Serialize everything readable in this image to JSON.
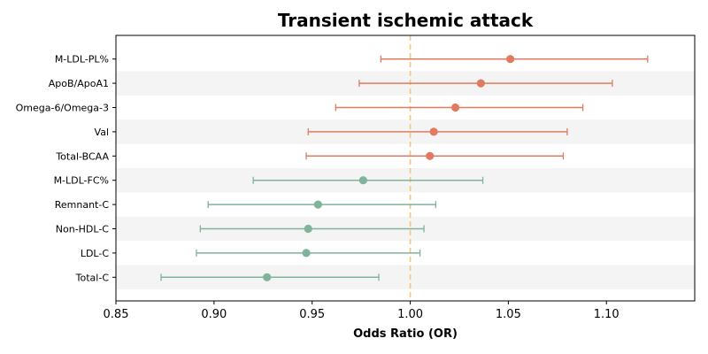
{
  "chart_data": {
    "type": "forest",
    "title": "Transient ischemic attack",
    "xlabel": "Odds Ratio (OR)",
    "ylabel": "",
    "xlim": [
      0.85,
      1.145
    ],
    "x_ticks": [
      0.85,
      0.9,
      0.95,
      1.0,
      1.05,
      1.1
    ],
    "x_tick_labels": [
      "0.85",
      "0.90",
      "0.95",
      "1.00",
      "1.05",
      "1.10"
    ],
    "reference_line": 1.0,
    "grid": false,
    "alternating_row_shading": true,
    "colors": {
      "positive": "#e07b5f",
      "negative": "#7fb39a",
      "reference": "#f5c57f",
      "shade": "#f4f4f4"
    },
    "rows": [
      {
        "label": "M-LDL-PL%",
        "or": 1.051,
        "lower": 0.985,
        "upper": 1.121,
        "group": "positive"
      },
      {
        "label": "ApoB/ApoA1",
        "or": 1.036,
        "lower": 0.974,
        "upper": 1.103,
        "group": "positive"
      },
      {
        "label": "Omega-6/Omega-3",
        "or": 1.023,
        "lower": 0.962,
        "upper": 1.088,
        "group": "positive"
      },
      {
        "label": "Val",
        "or": 1.012,
        "lower": 0.948,
        "upper": 1.08,
        "group": "positive"
      },
      {
        "label": "Total-BCAA",
        "or": 1.01,
        "lower": 0.947,
        "upper": 1.078,
        "group": "positive"
      },
      {
        "label": "M-LDL-FC%",
        "or": 0.976,
        "lower": 0.92,
        "upper": 1.037,
        "group": "negative"
      },
      {
        "label": "Remnant-C",
        "or": 0.953,
        "lower": 0.897,
        "upper": 1.013,
        "group": "negative"
      },
      {
        "label": "Non-HDL-C",
        "or": 0.948,
        "lower": 0.893,
        "upper": 1.007,
        "group": "negative"
      },
      {
        "label": "LDL-C",
        "or": 0.947,
        "lower": 0.891,
        "upper": 1.005,
        "group": "negative"
      },
      {
        "label": "Total-C",
        "or": 0.927,
        "lower": 0.873,
        "upper": 0.984,
        "group": "negative"
      }
    ]
  }
}
